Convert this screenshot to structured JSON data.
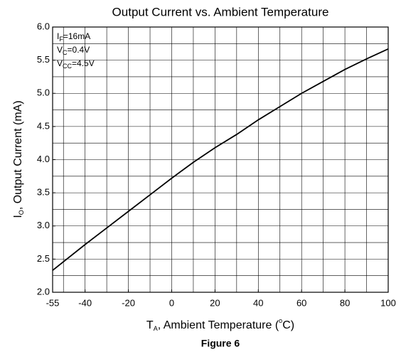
{
  "chart_data": {
    "type": "line",
    "title": "Output Current vs. Ambient Temperature",
    "x_label": {
      "main": "T",
      "sub": "A",
      "rest": ", Ambient Temperature (",
      "sup": "o",
      "end": "C)"
    },
    "y_label": {
      "main": "I",
      "sub": "O",
      "rest": ", Output Current (mA)"
    },
    "caption": "Figure 6",
    "annotations": [
      {
        "main": "I",
        "sub": "F",
        "rest": "=16mA"
      },
      {
        "main": "V",
        "sub": "C",
        "rest": "=0.4V"
      },
      {
        "main": "V",
        "sub": "CC",
        "rest": "=4.5V"
      }
    ],
    "x": [
      -55,
      -40,
      -30,
      -20,
      -10,
      0,
      10,
      20,
      30,
      40,
      50,
      60,
      70,
      80,
      90,
      100
    ],
    "series": [
      {
        "name": "Output Current",
        "color": "#000000",
        "values": [
          2.33,
          2.72,
          2.97,
          3.22,
          3.47,
          3.72,
          3.96,
          4.18,
          4.38,
          4.6,
          4.8,
          5.0,
          5.18,
          5.36,
          5.52,
          5.67
        ]
      }
    ],
    "xlim": [
      -55,
      100
    ],
    "ylim": [
      2.0,
      6.0
    ],
    "xticks": [
      -55,
      -40,
      -20,
      0,
      20,
      40,
      60,
      80,
      100
    ],
    "yticks": [
      {
        "value": 2.0,
        "label": "2.0"
      },
      {
        "value": 2.5,
        "label": "2.5"
      },
      {
        "value": 3.0,
        "label": "3.0"
      },
      {
        "value": 3.5,
        "label": "3.5"
      },
      {
        "value": 4.0,
        "label": "4.0"
      },
      {
        "value": 4.5,
        "label": "4.5"
      },
      {
        "value": 5.0,
        "label": "5.0"
      },
      {
        "value": 5.5,
        "label": "5.5"
      },
      {
        "value": 6.0,
        "label": "6.0"
      }
    ],
    "xgrid": [
      -50,
      -40,
      -30,
      -20,
      -10,
      0,
      10,
      20,
      30,
      40,
      50,
      60,
      70,
      80,
      90
    ],
    "ygrid": [
      2.25,
      2.5,
      2.75,
      3.0,
      3.25,
      3.5,
      3.75,
      4.0,
      4.25,
      4.5,
      4.75,
      5.0,
      5.25,
      5.5,
      5.75
    ],
    "grid": true
  }
}
